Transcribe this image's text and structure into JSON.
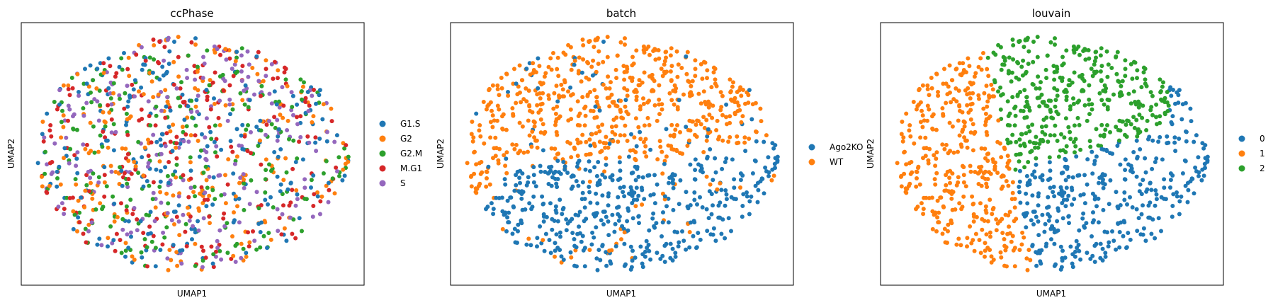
{
  "chart_data": [
    {
      "type": "scatter",
      "title": "ccPhase",
      "xlabel": "UMAP1",
      "ylabel": "UMAP2",
      "xticks": [],
      "yticks": [],
      "grid": false,
      "legend": {
        "placement": "right",
        "entries": [
          "G1.S",
          "G2",
          "G2.M",
          "M.G1",
          "S"
        ]
      },
      "colors": [
        "#1f77b4",
        "#ff7f0e",
        "#2ca02c",
        "#d62728",
        "#9467bd"
      ],
      "coloring": "random-mix",
      "n_points": 1100
    },
    {
      "type": "scatter",
      "title": "batch",
      "xlabel": "UMAP1",
      "ylabel": "UMAP2",
      "xticks": [],
      "yticks": [],
      "grid": false,
      "legend": {
        "placement": "right",
        "entries": [
          "Ago2KO",
          "WT"
        ]
      },
      "colors": [
        "#1f77b4",
        "#ff7f0e"
      ],
      "coloring": "top-vs-bottom",
      "n_points": 1100
    },
    {
      "type": "scatter",
      "title": "louvain",
      "xlabel": "UMAP1",
      "ylabel": "UMAP2",
      "xticks": [],
      "yticks": [],
      "grid": false,
      "legend": {
        "placement": "right",
        "entries": [
          "0",
          "1",
          "2"
        ]
      },
      "colors": [
        "#1f77b4",
        "#ff7f0e",
        "#2ca02c"
      ],
      "coloring": "three-clusters",
      "n_points": 1100
    }
  ]
}
